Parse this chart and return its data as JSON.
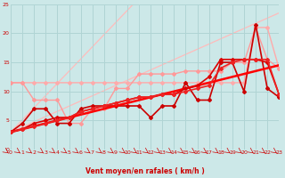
{
  "xlabel": "Vent moyen/en rafales ( km/h )",
  "bg_color": "#cce8e8",
  "grid_color": "#b0d4d4",
  "x_values": [
    0,
    1,
    2,
    3,
    4,
    5,
    6,
    7,
    8,
    9,
    10,
    11,
    12,
    13,
    14,
    15,
    16,
    17,
    18,
    19,
    20,
    21,
    22,
    23
  ],
  "ylim": [
    0,
    25
  ],
  "xlim": [
    0,
    23
  ],
  "lines": [
    {
      "y": [
        11.5,
        11.5,
        11.5,
        11.5,
        11.5,
        11.5,
        11.5,
        11.5,
        11.5,
        11.5,
        11.5,
        11.5,
        11.5,
        11.5,
        11.5,
        11.5,
        11.5,
        11.5,
        11.5,
        11.5,
        11.5,
        21.0,
        21.0,
        14.0
      ],
      "color": "#ffaaaa",
      "lw": 1.0,
      "marker": "D",
      "ms": 2.0
    },
    {
      "y": [
        11.5,
        11.5,
        8.5,
        8.5,
        8.5,
        4.5,
        4.5,
        7.0,
        7.0,
        10.5,
        10.5,
        13.0,
        13.0,
        13.0,
        13.0,
        13.5,
        13.5,
        13.5,
        13.5,
        15.0,
        15.0,
        21.0,
        15.5,
        14.0
      ],
      "color": "#ff9999",
      "lw": 1.0,
      "marker": "D",
      "ms": 2.0
    },
    {
      "y": [
        3.0,
        4.5,
        7.0,
        7.0,
        4.5,
        4.5,
        7.0,
        7.5,
        7.5,
        7.5,
        7.5,
        7.5,
        5.5,
        7.5,
        7.5,
        11.5,
        8.5,
        8.5,
        15.0,
        15.0,
        10.0,
        21.5,
        10.5,
        9.0
      ],
      "color": "#cc0000",
      "lw": 1.2,
      "marker": "D",
      "ms": 2.0
    },
    {
      "y": [
        3.0,
        3.5,
        4.0,
        4.5,
        5.0,
        5.5,
        6.0,
        6.5,
        7.0,
        7.5,
        8.0,
        8.5,
        9.0,
        9.5,
        10.0,
        10.5,
        11.0,
        11.5,
        12.0,
        12.5,
        13.0,
        13.5,
        14.0,
        14.5
      ],
      "color": "#ff0000",
      "lw": 1.8,
      "marker": null,
      "ms": 0
    },
    {
      "y": [
        3.0,
        3.5,
        4.5,
        5.0,
        5.5,
        5.5,
        6.5,
        7.0,
        7.5,
        8.0,
        8.5,
        9.0,
        9.0,
        9.5,
        9.5,
        10.5,
        11.0,
        12.5,
        15.5,
        15.5,
        15.5,
        15.5,
        15.0,
        9.5
      ],
      "color": "#dd0000",
      "lw": 1.2,
      "marker": "D",
      "ms": 2.0
    },
    {
      "y": [
        3.0,
        3.5,
        4.0,
        4.5,
        5.0,
        5.5,
        6.5,
        7.0,
        7.5,
        8.0,
        8.5,
        9.0,
        9.0,
        9.5,
        9.5,
        10.0,
        10.5,
        11.0,
        14.0,
        15.0,
        15.5,
        15.5,
        15.5,
        9.5
      ],
      "color": "#ee2222",
      "lw": 1.2,
      "marker": "D",
      "ms": 2.0
    }
  ],
  "triangle_lines": [
    {
      "x": [
        0,
        10.5
      ],
      "y": [
        3.0,
        25.0
      ],
      "color": "#ffbbbb",
      "lw": 0.9
    },
    {
      "x": [
        0,
        23
      ],
      "y": [
        3.0,
        23.5
      ],
      "color": "#ffbbbb",
      "lw": 0.9
    }
  ],
  "yticks": [
    0,
    5,
    10,
    15,
    20,
    25
  ],
  "xticks": [
    0,
    1,
    2,
    3,
    4,
    5,
    6,
    7,
    8,
    9,
    10,
    11,
    12,
    13,
    14,
    15,
    16,
    17,
    18,
    19,
    20,
    21,
    22,
    23
  ]
}
